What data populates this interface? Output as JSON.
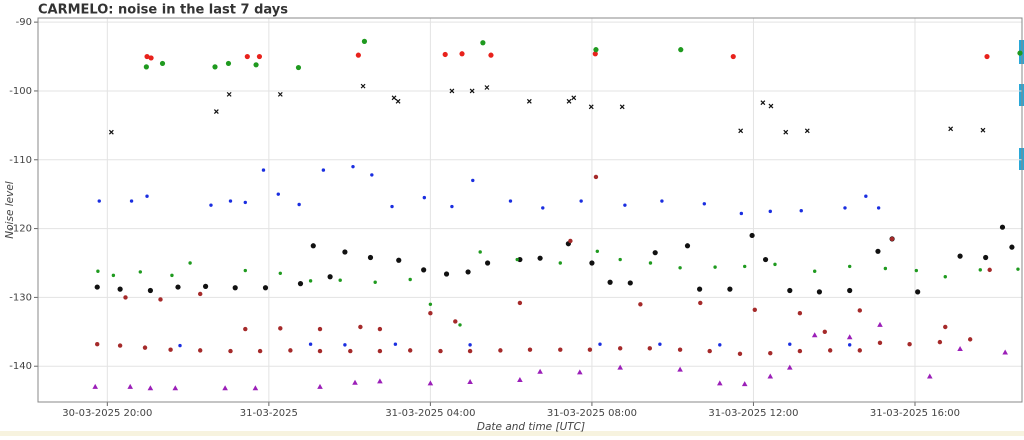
{
  "chart_data": {
    "type": "scatter",
    "title": "CARMELO: noise in the last 7 days",
    "x_label": "Date and time [UTC]",
    "y_label": "Noise level",
    "grid": true,
    "xlim": [
      "2025-03-30T18:17",
      "2025-03-31T18:39"
    ],
    "ylim": [
      -145.2,
      -89.4
    ],
    "xticks": [
      {
        "value": "2025-03-30T20:00",
        "label": "30-03-2025 20:00"
      },
      {
        "value": "2025-03-31T00:00",
        "label": "31-03-2025"
      },
      {
        "value": "2025-03-31T04:00",
        "label": "31-03-2025 04:00"
      },
      {
        "value": "2025-03-31T08:00",
        "label": "31-03-2025 08:00"
      },
      {
        "value": "2025-03-31T12:00",
        "label": "31-03-2025 12:00"
      },
      {
        "value": "2025-03-31T16:00",
        "label": "31-03-2025 16:00"
      }
    ],
    "yticks": [
      -90,
      -100,
      -110,
      -120,
      -130,
      -140
    ],
    "series": [
      {
        "color": "#e8221c",
        "marker": "circle",
        "x": [
          "2025-03-30T20:59",
          "2025-03-30T21:05",
          "2025-03-30T23:28",
          "2025-03-30T23:46",
          "2025-03-31T02:13",
          "2025-03-31T04:22",
          "2025-03-31T04:47",
          "2025-03-31T05:30",
          "2025-03-31T08:05",
          "2025-03-31T11:30",
          "2025-03-31T17:47"
        ],
        "values": [
          -95,
          -95.2,
          -95,
          -95,
          -94.8,
          -94.7,
          -94.6,
          -94.8,
          -94.6,
          -95,
          -95
        ]
      },
      {
        "color": "#1f9a1f",
        "marker": "circle",
        "x": [
          "2025-03-30T20:58",
          "2025-03-30T21:22",
          "2025-03-30T22:40",
          "2025-03-30T23:00",
          "2025-03-30T23:41",
          "2025-03-31T00:44",
          "2025-03-31T02:22",
          "2025-03-31T05:18",
          "2025-03-31T08:06",
          "2025-03-31T10:12",
          "2025-03-31T18:36"
        ],
        "values": [
          -96.5,
          -96,
          -96.5,
          -96,
          -96.2,
          -96.6,
          -92.8,
          -93,
          -94,
          -94,
          -94.5
        ]
      },
      {
        "color": "#111111",
        "marker": "x",
        "x": [
          "2025-03-30T20:06",
          "2025-03-30T22:42",
          "2025-03-30T23:01",
          "2025-03-31T00:17",
          "2025-03-31T02:20",
          "2025-03-31T03:06",
          "2025-03-31T03:12",
          "2025-03-31T04:32",
          "2025-03-31T05:02",
          "2025-03-31T05:24",
          "2025-03-31T06:27",
          "2025-03-31T07:26",
          "2025-03-31T07:33",
          "2025-03-31T07:59",
          "2025-03-31T08:45",
          "2025-03-31T11:41",
          "2025-03-31T12:14",
          "2025-03-31T12:26",
          "2025-03-31T12:48",
          "2025-03-31T13:20",
          "2025-03-31T16:53",
          "2025-03-31T17:41"
        ],
        "values": [
          -106,
          -103,
          -100.5,
          -100.5,
          -99.3,
          -101,
          -101.5,
          -100,
          -100,
          -99.5,
          -101.5,
          -101.5,
          -101,
          -102.3,
          -102.3,
          -105.8,
          -101.7,
          -102.2,
          -106,
          -105.8,
          -105.5,
          -105.7
        ]
      },
      {
        "color": "#1a2ee0",
        "marker": "small",
        "x": [
          "2025-03-30T19:48",
          "2025-03-30T20:36",
          "2025-03-30T20:59",
          "2025-03-30T22:34",
          "2025-03-30T23:03",
          "2025-03-30T23:25",
          "2025-03-30T23:52",
          "2025-03-31T00:14",
          "2025-03-31T00:45",
          "2025-03-31T01:21",
          "2025-03-31T02:05",
          "2025-03-31T02:33",
          "2025-03-31T03:03",
          "2025-03-31T03:51",
          "2025-03-31T04:32",
          "2025-03-31T05:03",
          "2025-03-31T05:59",
          "2025-03-31T06:47",
          "2025-03-31T07:44",
          "2025-03-31T08:49",
          "2025-03-31T09:44",
          "2025-03-31T10:47",
          "2025-03-31T11:42",
          "2025-03-31T12:25",
          "2025-03-31T13:11",
          "2025-03-31T14:16",
          "2025-03-31T14:47",
          "2025-03-31T15:06"
        ],
        "values": [
          -116,
          -116,
          -115.3,
          -116.6,
          -116,
          -116.2,
          -111.5,
          -115,
          -116.5,
          -111.5,
          -111,
          -112.2,
          -116.8,
          -115.5,
          -116.8,
          -113,
          -116,
          -117,
          -116,
          -116.6,
          -116,
          -116.4,
          -117.8,
          -117.5,
          -117.4,
          -117,
          -115.3,
          -117
        ]
      },
      {
        "color": "#111111",
        "marker": "circle",
        "x": [
          "2025-03-30T19:45",
          "2025-03-30T20:19",
          "2025-03-30T21:04",
          "2025-03-30T21:45",
          "2025-03-30T22:26",
          "2025-03-30T23:10",
          "2025-03-30T23:55",
          "2025-03-31T00:47",
          "2025-03-31T01:06",
          "2025-03-31T01:31",
          "2025-03-31T01:53",
          "2025-03-31T02:31",
          "2025-03-31T03:13",
          "2025-03-31T03:50",
          "2025-03-31T04:24",
          "2025-03-31T04:56",
          "2025-03-31T05:25",
          "2025-03-31T06:13",
          "2025-03-31T06:43",
          "2025-03-31T07:25",
          "2025-03-31T08:00",
          "2025-03-31T08:27",
          "2025-03-31T08:57",
          "2025-03-31T09:34",
          "2025-03-31T10:22",
          "2025-03-31T10:40",
          "2025-03-31T11:25",
          "2025-03-31T11:58",
          "2025-03-31T12:18",
          "2025-03-31T12:54",
          "2025-03-31T13:38",
          "2025-03-31T14:23",
          "2025-03-31T15:05",
          "2025-03-31T15:26",
          "2025-03-31T16:04",
          "2025-03-31T17:07",
          "2025-03-31T17:45",
          "2025-03-31T18:10",
          "2025-03-31T18:24"
        ],
        "values": [
          -128.5,
          -128.8,
          -129,
          -128.5,
          -128.4,
          -128.6,
          -128.6,
          -128,
          -122.5,
          -127,
          -123.4,
          -124.2,
          -124.6,
          -126,
          -126.6,
          -126.3,
          -125,
          -124.5,
          -124.3,
          -122.2,
          -125,
          -127.8,
          -127.9,
          -123.5,
          -122.5,
          -128.8,
          -128.8,
          -121,
          -124.5,
          -129,
          -129.2,
          -129,
          -123.3,
          -121.5,
          -129.2,
          -124,
          -124.2,
          -119.8,
          -122.7
        ]
      },
      {
        "color": "#1f9a1f",
        "marker": "small",
        "x": [
          "2025-03-30T19:46",
          "2025-03-30T20:09",
          "2025-03-30T20:49",
          "2025-03-30T21:36",
          "2025-03-30T22:03",
          "2025-03-30T23:25",
          "2025-03-31T00:17",
          "2025-03-31T01:02",
          "2025-03-31T01:46",
          "2025-03-31T02:38",
          "2025-03-31T03:30",
          "2025-03-31T04:00",
          "2025-03-31T04:44",
          "2025-03-31T05:14",
          "2025-03-31T06:09",
          "2025-03-31T07:13",
          "2025-03-31T08:08",
          "2025-03-31T08:42",
          "2025-03-31T09:27",
          "2025-03-31T10:11",
          "2025-03-31T11:03",
          "2025-03-31T11:47",
          "2025-03-31T12:32",
          "2025-03-31T13:31",
          "2025-03-31T14:23",
          "2025-03-31T15:16",
          "2025-03-31T16:02",
          "2025-03-31T16:45",
          "2025-03-31T17:37",
          "2025-03-31T18:33"
        ],
        "values": [
          -126.2,
          -126.8,
          -126.3,
          -126.8,
          -125,
          -126.1,
          -126.5,
          -127.6,
          -127.5,
          -127.8,
          -127.4,
          -131,
          -134,
          -123.4,
          -124.5,
          -125,
          -123.3,
          -124.5,
          -125,
          -125.7,
          -125.6,
          -125.5,
          -125.2,
          -126.2,
          -125.5,
          -125.8,
          -126.1,
          -127,
          -126,
          -125.9
        ]
      },
      {
        "color": "#a52a2a",
        "marker": "brown",
        "x": [
          "2025-03-30T19:45",
          "2025-03-30T20:19",
          "2025-03-30T20:56",
          "2025-03-30T21:34",
          "2025-03-30T22:18",
          "2025-03-30T23:03",
          "2025-03-30T23:47",
          "2025-03-31T00:32",
          "2025-03-31T01:16",
          "2025-03-31T02:01",
          "2025-03-31T02:45",
          "2025-03-31T03:30",
          "2025-03-31T04:15",
          "2025-03-31T04:59",
          "2025-03-31T05:44",
          "2025-03-31T06:28",
          "2025-03-31T07:13",
          "2025-03-31T07:57",
          "2025-03-31T08:42",
          "2025-03-31T09:26",
          "2025-03-31T10:11",
          "2025-03-31T10:55",
          "2025-03-31T11:40",
          "2025-03-31T12:25",
          "2025-03-31T13:09",
          "2025-03-31T13:54",
          "2025-03-31T14:38",
          "2025-03-31T15:08",
          "2025-03-31T15:52",
          "2025-03-31T16:37",
          "2025-03-31T17:22",
          "2025-03-30T20:27",
          "2025-03-30T21:19",
          "2025-03-30T22:18",
          "2025-03-30T23:25",
          "2025-03-31T00:17",
          "2025-03-31T01:16",
          "2025-03-31T02:16",
          "2025-03-31T02:45",
          "2025-03-31T04:00",
          "2025-03-31T04:37",
          "2025-03-31T06:13",
          "2025-03-31T07:28",
          "2025-03-31T08:06",
          "2025-03-31T09:12",
          "2025-03-31T10:41",
          "2025-03-31T12:02",
          "2025-03-31T13:09",
          "2025-03-31T13:46",
          "2025-03-31T14:38",
          "2025-03-31T15:26",
          "2025-03-31T16:45",
          "2025-03-31T17:51"
        ],
        "values": [
          -136.8,
          -137,
          -137.3,
          -137.6,
          -137.7,
          -137.8,
          -137.8,
          -137.7,
          -137.8,
          -137.8,
          -137.8,
          -137.7,
          -137.8,
          -137.8,
          -137.7,
          -137.6,
          -137.6,
          -137.6,
          -137.4,
          -137.4,
          -137.6,
          -137.8,
          -138.2,
          -138.1,
          -137.8,
          -137.7,
          -137.7,
          -136.6,
          -136.8,
          -136.5,
          -136.1,
          -130,
          -130.3,
          -129.5,
          -134.6,
          -134.5,
          -134.6,
          -134.3,
          -134.6,
          -132.3,
          -133.5,
          -130.8,
          -121.8,
          -112.5,
          -131,
          -130.8,
          -131.8,
          -132.3,
          -135,
          -131.9,
          -121.5,
          -134.3,
          -126
        ]
      },
      {
        "color": "#1a2ee0",
        "marker": "small",
        "x": [
          "2025-03-30T21:48",
          "2025-03-31T01:02",
          "2025-03-31T01:53",
          "2025-03-31T03:08",
          "2025-03-31T04:59",
          "2025-03-31T08:12",
          "2025-03-31T09:41",
          "2025-03-31T11:10",
          "2025-03-31T12:54",
          "2025-03-31T14:23"
        ],
        "values": [
          -137,
          -136.8,
          -136.9,
          -136.8,
          -136.9,
          -136.8,
          -136.8,
          -136.9,
          -136.8,
          -136.9
        ]
      },
      {
        "color": "#9b1fb8",
        "marker": "triangle",
        "x": [
          "2025-03-30T19:42",
          "2025-03-30T20:34",
          "2025-03-30T21:04",
          "2025-03-30T21:41",
          "2025-03-30T22:55",
          "2025-03-30T23:40",
          "2025-03-31T01:16",
          "2025-03-31T02:08",
          "2025-03-31T02:45",
          "2025-03-31T04:00",
          "2025-03-31T04:59",
          "2025-03-31T06:13",
          "2025-03-31T06:43",
          "2025-03-31T07:42",
          "2025-03-31T08:42",
          "2025-03-31T10:11",
          "2025-03-31T11:10",
          "2025-03-31T11:47",
          "2025-03-31T12:25",
          "2025-03-31T12:54",
          "2025-03-31T13:31",
          "2025-03-31T14:23",
          "2025-03-31T15:08",
          "2025-03-31T16:22",
          "2025-03-31T17:07",
          "2025-03-31T18:14"
        ],
        "values": [
          -143,
          -143,
          -143.2,
          -143.2,
          -143.2,
          -143.2,
          -143,
          -142.4,
          -142.2,
          -142.5,
          -142.3,
          -142,
          -140.8,
          -140.9,
          -140.2,
          -140.5,
          -142.5,
          -142.6,
          -141.5,
          -140.2,
          -135.5,
          -135.8,
          -134,
          -141.5,
          -137.5,
          -138
        ]
      }
    ]
  }
}
